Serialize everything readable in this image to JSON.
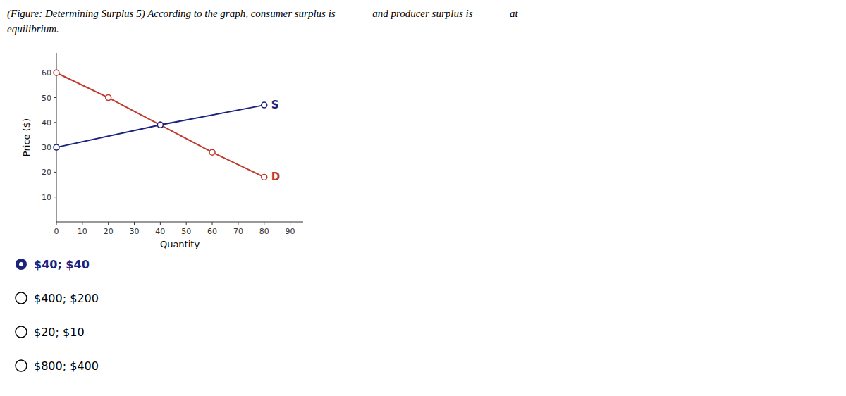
{
  "chart_data": {
    "type": "line",
    "title": [
      "(Figure: Determining Surplus 5) According to the graph, consumer surplus is ______  and producer surplus is ______  at",
      "equilibrium."
    ],
    "xlabel": "Quantity",
    "ylabel": "Price ($)",
    "series": [
      {
        "name": "D",
        "color": "#c0392b",
        "marker": "circle",
        "x": [
          0,
          20,
          40,
          60,
          80
        ],
        "values": [
          60,
          50,
          39,
          28,
          18
        ]
      },
      {
        "name": "S",
        "color": "#1a237e",
        "marker": "circle",
        "x": [
          0,
          40,
          80
        ],
        "values": [
          30,
          39,
          47
        ]
      }
    ],
    "xlim": [
      0,
      95
    ],
    "ylim": [
      0,
      68
    ],
    "xticks": [
      0,
      10,
      20,
      30,
      40,
      50,
      60,
      70,
      80,
      90
    ],
    "yticks": [
      10,
      20,
      30,
      40,
      50,
      60
    ],
    "grid": false,
    "annotations": [
      {
        "text": "$40; $40",
        "color": "#1a237e",
        "marker": "filled"
      },
      {
        "text": "$400; $200",
        "color": "#000000",
        "marker": "open"
      },
      {
        "text": "$20; $10",
        "color": "#000000",
        "marker": "open"
      },
      {
        "text": "$800; $400",
        "color": "#000000",
        "marker": "open"
      }
    ]
  }
}
